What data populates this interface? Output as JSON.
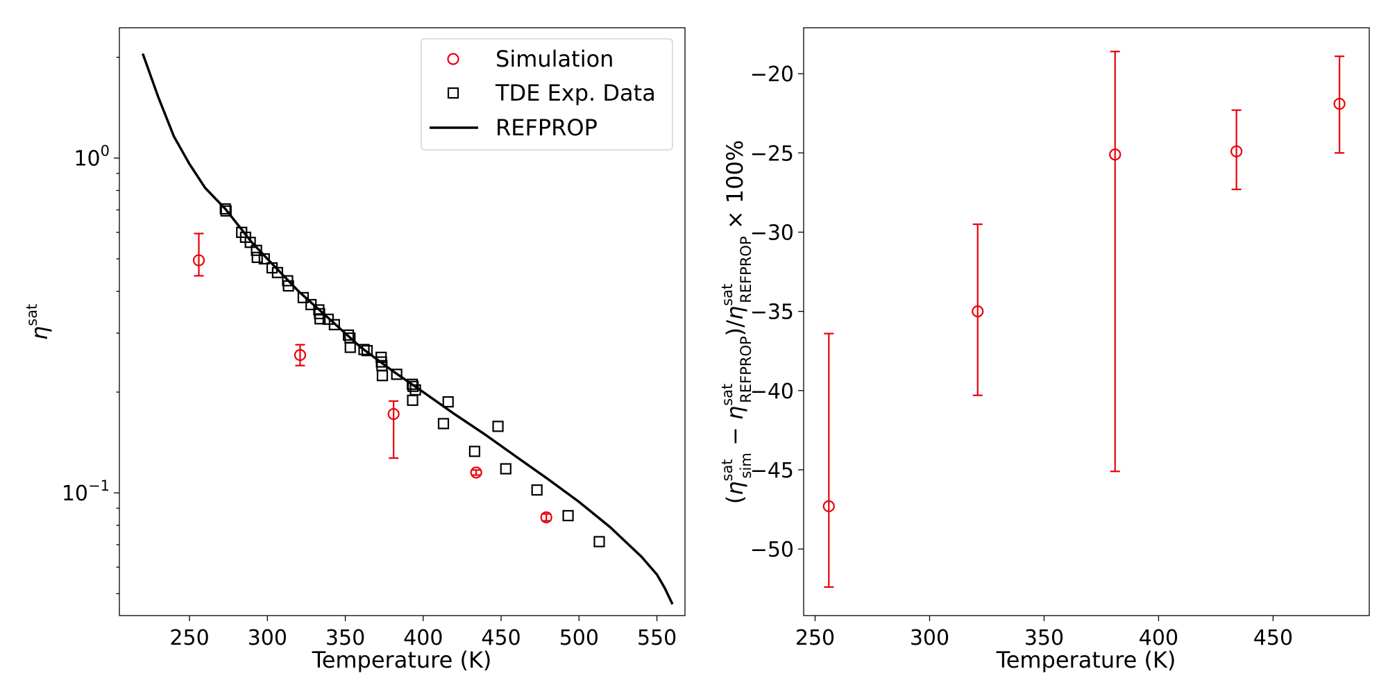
{
  "chart_data": [
    {
      "type": "scatter",
      "title": "",
      "xlabel": "Temperature (K)",
      "ylabel": "η^sat",
      "ylabel_symbol": "η",
      "ylabel_sup": "sat",
      "yscale": "log",
      "xlim": [
        205,
        568
      ],
      "ylim": [
        0.043,
        2.45
      ],
      "x_ticks": [
        250,
        300,
        350,
        400,
        450,
        500,
        550
      ],
      "y_ticks_major": [
        {
          "value": 1.0,
          "base": "10",
          "exp": "0"
        },
        {
          "value": 0.1,
          "base": "10",
          "exp": "−1"
        }
      ],
      "legend": {
        "position": "top-right",
        "entries": [
          {
            "label": "Simulation",
            "marker": "circle",
            "color": "#e8000b"
          },
          {
            "label": "TDE Exp. Data",
            "marker": "square",
            "color": "#000000"
          },
          {
            "label": "REFPROP",
            "marker": "line",
            "color": "#000000"
          }
        ]
      },
      "series": [
        {
          "name": "Simulation",
          "kind": "errorbar",
          "color": "#e8000b",
          "points": [
            {
              "x": 256.0,
              "y": 0.495,
              "ylow": 0.445,
              "yhigh": 0.595
            },
            {
              "x": 321.0,
              "y": 0.258,
              "ylow": 0.24,
              "yhigh": 0.277
            },
            {
              "x": 381.0,
              "y": 0.172,
              "ylow": 0.127,
              "yhigh": 0.188
            },
            {
              "x": 434.0,
              "y": 0.115,
              "ylow": 0.113,
              "yhigh": 0.117
            },
            {
              "x": 479.0,
              "y": 0.0845,
              "ylow": 0.0825,
              "yhigh": 0.0865
            }
          ]
        },
        {
          "name": "TDE Exp. Data",
          "kind": "scatter",
          "color": "#000000",
          "points": [
            {
              "x": 273,
              "y": 0.705
            },
            {
              "x": 273.5,
              "y": 0.695
            },
            {
              "x": 283.5,
              "y": 0.6
            },
            {
              "x": 286,
              "y": 0.58
            },
            {
              "x": 289,
              "y": 0.56
            },
            {
              "x": 293,
              "y": 0.53
            },
            {
              "x": 293.5,
              "y": 0.505
            },
            {
              "x": 298,
              "y": 0.5
            },
            {
              "x": 303,
              "y": 0.47
            },
            {
              "x": 306.5,
              "y": 0.455
            },
            {
              "x": 313,
              "y": 0.43
            },
            {
              "x": 313.5,
              "y": 0.415
            },
            {
              "x": 323,
              "y": 0.383
            },
            {
              "x": 328,
              "y": 0.365
            },
            {
              "x": 333,
              "y": 0.352
            },
            {
              "x": 333.5,
              "y": 0.343
            },
            {
              "x": 333.8,
              "y": 0.331
            },
            {
              "x": 339,
              "y": 0.33
            },
            {
              "x": 343,
              "y": 0.318
            },
            {
              "x": 352,
              "y": 0.296
            },
            {
              "x": 353,
              "y": 0.29
            },
            {
              "x": 353.2,
              "y": 0.272
            },
            {
              "x": 362,
              "y": 0.268
            },
            {
              "x": 364,
              "y": 0.266
            },
            {
              "x": 373,
              "y": 0.254
            },
            {
              "x": 373.2,
              "y": 0.246
            },
            {
              "x": 373.5,
              "y": 0.24
            },
            {
              "x": 373.8,
              "y": 0.224
            },
            {
              "x": 383,
              "y": 0.226
            },
            {
              "x": 393,
              "y": 0.211
            },
            {
              "x": 393.5,
              "y": 0.208
            },
            {
              "x": 395,
              "y": 0.203
            },
            {
              "x": 393.2,
              "y": 0.189
            },
            {
              "x": 416,
              "y": 0.187
            },
            {
              "x": 413,
              "y": 0.161
            },
            {
              "x": 448,
              "y": 0.158
            },
            {
              "x": 433,
              "y": 0.133
            },
            {
              "x": 453,
              "y": 0.118
            },
            {
              "x": 473,
              "y": 0.102
            },
            {
              "x": 493,
              "y": 0.0855
            },
            {
              "x": 513,
              "y": 0.0715
            }
          ]
        },
        {
          "name": "REFPROP",
          "kind": "line",
          "color": "#000000",
          "points": [
            {
              "x": 220,
              "y": 2.05
            },
            {
              "x": 230,
              "y": 1.52
            },
            {
              "x": 240,
              "y": 1.16
            },
            {
              "x": 250,
              "y": 0.96
            },
            {
              "x": 260,
              "y": 0.815
            },
            {
              "x": 273,
              "y": 0.705
            },
            {
              "x": 290,
              "y": 0.56
            },
            {
              "x": 300,
              "y": 0.5
            },
            {
              "x": 320,
              "y": 0.4
            },
            {
              "x": 340,
              "y": 0.33
            },
            {
              "x": 360,
              "y": 0.272
            },
            {
              "x": 380,
              "y": 0.232
            },
            {
              "x": 400,
              "y": 0.2
            },
            {
              "x": 420,
              "y": 0.172
            },
            {
              "x": 440,
              "y": 0.149
            },
            {
              "x": 460,
              "y": 0.128
            },
            {
              "x": 480,
              "y": 0.11
            },
            {
              "x": 500,
              "y": 0.094
            },
            {
              "x": 520,
              "y": 0.079
            },
            {
              "x": 540,
              "y": 0.0645
            },
            {
              "x": 550,
              "y": 0.057
            },
            {
              "x": 555,
              "y": 0.052
            },
            {
              "x": 560,
              "y": 0.0465
            }
          ]
        }
      ]
    },
    {
      "type": "scatter",
      "title": "",
      "xlabel": "Temperature (K)",
      "ylabel": "(η_sim^sat − η_REFPROP^sat)/η_REFPROP^sat × 100%",
      "ylabel_parts": {
        "open": "(",
        "eta1": "η",
        "sup1": "sat",
        "sub1": "sim",
        "minus": " − ",
        "eta2": "η",
        "sup2": "sat",
        "sub2": "REFPROP",
        "close_slash": ")/",
        "eta3": "η",
        "sup3": "sat",
        "sub3": "REFPROP",
        "tail": " × 100%"
      },
      "yscale": "linear",
      "xlim": [
        245,
        492
      ],
      "ylim": [
        -54.2,
        -17.1
      ],
      "x_ticks": [
        250,
        300,
        350,
        400,
        450
      ],
      "y_ticks": [
        -50,
        -45,
        -40,
        -35,
        -30,
        -25,
        -20
      ],
      "y_tick_labels": [
        "−50",
        "−45",
        "−40",
        "−35",
        "−30",
        "−25",
        "−20"
      ],
      "series": [
        {
          "name": "",
          "kind": "errorbar",
          "color": "#e8000b",
          "points": [
            {
              "x": 256.0,
              "y": -47.3,
              "ylow": -52.4,
              "yhigh": -36.4
            },
            {
              "x": 321.0,
              "y": -35.0,
              "ylow": -40.3,
              "yhigh": -29.5
            },
            {
              "x": 381.0,
              "y": -25.1,
              "ylow": -45.1,
              "yhigh": -18.6
            },
            {
              "x": 434.0,
              "y": -24.9,
              "ylow": -27.3,
              "yhigh": -22.3
            },
            {
              "x": 479.0,
              "y": -21.9,
              "ylow": -25.0,
              "yhigh": -18.9
            }
          ]
        }
      ]
    }
  ]
}
